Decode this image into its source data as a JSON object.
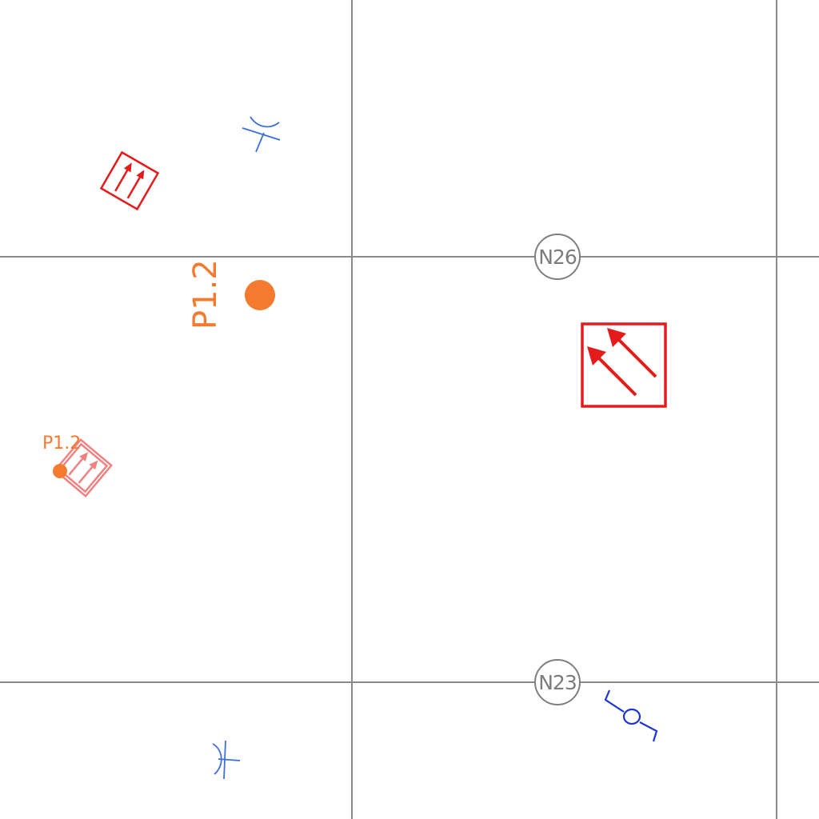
{
  "diagram": {
    "node_labels": {
      "n26": "N26",
      "n23": "N23"
    },
    "point_labels": {
      "large": "P1.2",
      "small": "P1.2"
    },
    "colors": {
      "grid": "#8a8a8a",
      "node": "#7f7f7f",
      "sign": "#e31b1b",
      "blue_symbol": "#3c6fd8",
      "blue_dark_symbol": "#1d35d8",
      "point": "#f47a30"
    },
    "icons": [
      "road-direction-arrows-sign-icon",
      "road-direction-arrows-sign-small-icon",
      "blue-junction-symbol-icon",
      "blue-valve-symbol-icon",
      "orange-point-marker-icon"
    ]
  }
}
